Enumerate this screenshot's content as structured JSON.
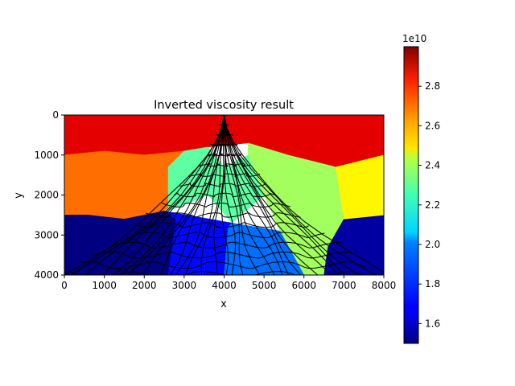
{
  "chart_data": {
    "type": "heatmap",
    "title": "Inverted viscosity result",
    "xlabel": "x",
    "ylabel": "y",
    "xlim": [
      0,
      8000
    ],
    "ylim": [
      4000,
      0
    ],
    "x_ticks": [
      "0",
      "1000",
      "2000",
      "3000",
      "4000",
      "5000",
      "6000",
      "7000",
      "8000"
    ],
    "y_ticks": [
      "0",
      "1000",
      "2000",
      "3000",
      "4000"
    ],
    "colorbar": {
      "range": [
        15000000000.0,
        30000000000.0
      ],
      "ticks": [
        "1.6",
        "1.8",
        "2.0",
        "2.2",
        "2.4",
        "2.6",
        "2.8"
      ],
      "multiplier": "1e10",
      "colormap": "jet"
    },
    "mesh": {
      "type": "quadrilateral",
      "edge_color": "#000000"
    },
    "regions": [
      {
        "name": "top-band",
        "value": 28500000000.0
      },
      {
        "name": "upper-band",
        "value": 26500000000.0
      },
      {
        "name": "wedge-left",
        "value": 22000000000.0
      },
      {
        "name": "wedge-right",
        "value": 23000000000.0
      },
      {
        "name": "lower-left",
        "value": 15000000000.0
      },
      {
        "name": "lower-center",
        "value": 17000000000.0
      },
      {
        "name": "lower-center-right",
        "value": 18500000000.0
      },
      {
        "name": "lower-right",
        "value": 15500000000.0
      },
      {
        "name": "right-mid",
        "value": 24500000000.0
      }
    ]
  }
}
